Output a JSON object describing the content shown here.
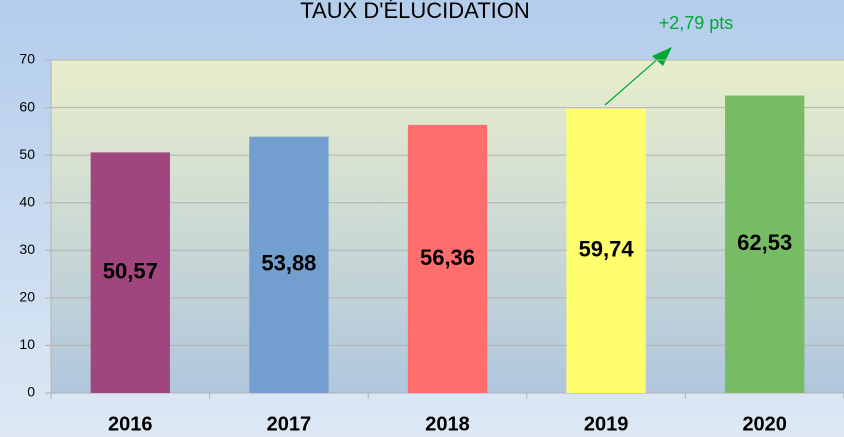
{
  "chart_data": {
    "type": "bar",
    "title": "TAUX D'ÉLUCIDATION",
    "categories": [
      "2016",
      "2017",
      "2018",
      "2019",
      "2020"
    ],
    "values": [
      50.57,
      53.88,
      56.36,
      59.74,
      62.53
    ],
    "value_labels": [
      "50,57",
      "53,88",
      "56,36",
      "59,74",
      "62,53"
    ],
    "colors": [
      "#a0457e",
      "#729fcf",
      "#ff6d6d",
      "#ffff6d",
      "#77bc65"
    ],
    "ylim": [
      0,
      70
    ],
    "yticks": [
      0,
      10,
      20,
      30,
      40,
      50,
      60,
      70
    ],
    "grid": true,
    "annotation": "+2,79 pts"
  }
}
